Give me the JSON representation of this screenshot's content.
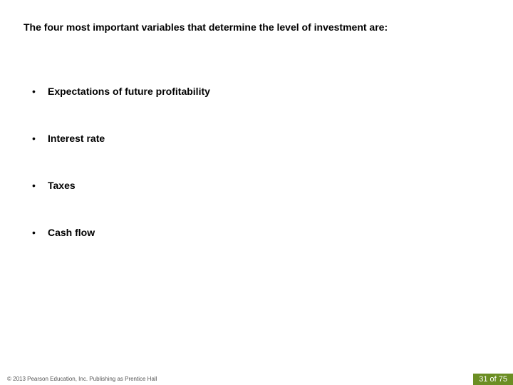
{
  "title": "The four most important variables that determine the level of investment are:",
  "bullets": {
    "items": [
      "Expectations of future profitability",
      "Interest rate",
      "Taxes",
      "Cash flow"
    ]
  },
  "footer": {
    "copyright": "© 2013 Pearson Education, Inc. Publishing as Prentice Hall",
    "page_label": "31 of 75",
    "page_bg_color": "#6b8e23",
    "page_text_color": "#ffffff"
  },
  "style": {
    "background_color": "#ffffff",
    "title_fontsize": 14,
    "bullet_fontsize": 14,
    "footer_fontsize": 8,
    "page_fontsize": 11,
    "text_color": "#000000",
    "copyright_color": "#555555"
  }
}
